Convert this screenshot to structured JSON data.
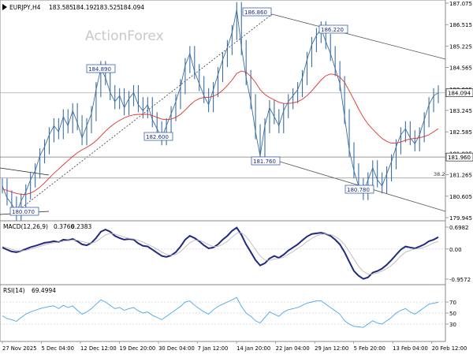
{
  "chart_data": [
    {
      "panel": "price",
      "type": "candlestick-line",
      "header": {
        "symbol": "EURJPY,H4",
        "open": "183.585",
        "high": "184.192",
        "low": "183.525",
        "close": "184.094"
      },
      "watermark": "ActionForex",
      "ylim": [
        179.945,
        187.075
      ],
      "y_tick_labels": [
        "187.075",
        "186.515",
        "185.225",
        "184.565",
        "183.905",
        "183.245",
        "182.585",
        "181.925",
        "181.265",
        "180.605",
        "179.945"
      ],
      "current_price_label": "184.094",
      "horizontal_levels": [
        {
          "value": 184.094,
          "label": "184.094"
        },
        {
          "value": 181.96,
          "label": "181.960"
        },
        {
          "value": 181.26,
          "label": "38.2"
        }
      ],
      "annotations": [
        "186.860",
        "186.220",
        "184.890",
        "182.600",
        "181.760",
        "180.780",
        "180.070"
      ],
      "x_tick_labels": [
        "27 Nov 2025",
        "5 Dec 04:00",
        "12 Dec 12:00",
        "19 Dec 20:00",
        "30 Dec 04:00",
        "7 Jan 12:00",
        "14 Jan 20:00",
        "22 Jan 04:00",
        "29 Jan 12:00",
        "5 Feb 20:00",
        "13 Feb 04:00",
        "20 Feb 12:00"
      ],
      "series": [
        {
          "kind": "price",
          "color": "#3b6ea5",
          "values": [
            181.0,
            180.6,
            180.4,
            180.1,
            180.5,
            180.8,
            181.2,
            181.5,
            182.0,
            182.3,
            182.7,
            183.0,
            182.8,
            183.3,
            183.0,
            183.5,
            183.1,
            182.6,
            183.0,
            183.4,
            184.2,
            184.9,
            184.6,
            184.1,
            183.8,
            184.0,
            183.6,
            183.9,
            184.1,
            183.7,
            183.5,
            183.7,
            183.2,
            182.9,
            182.6,
            183.0,
            183.4,
            183.8,
            184.3,
            185.0,
            185.4,
            184.8,
            184.4,
            184.0,
            183.7,
            184.2,
            184.7,
            185.2,
            185.6,
            186.1,
            186.86,
            185.6,
            184.6,
            183.8,
            182.8,
            182.0,
            183.0,
            183.6,
            183.3,
            183.0,
            183.5,
            183.8,
            184.0,
            184.2,
            184.6,
            185.2,
            185.7,
            186.0,
            186.22,
            185.8,
            185.4,
            184.9,
            184.4,
            183.3,
            182.2,
            181.5,
            181.0,
            180.78,
            181.2,
            181.6,
            181.2,
            181.0,
            181.4,
            181.8,
            182.3,
            182.7,
            182.9,
            182.6,
            182.4,
            182.7,
            183.2,
            183.7,
            184.0,
            184.094
          ]
        },
        {
          "kind": "moving-average",
          "color": "#e03030",
          "values": [
            180.9,
            180.85,
            180.8,
            180.75,
            180.72,
            180.72,
            180.76,
            180.84,
            180.96,
            181.1,
            181.26,
            181.42,
            181.56,
            181.7,
            181.84,
            181.98,
            182.1,
            182.2,
            182.28,
            182.38,
            182.5,
            182.66,
            182.82,
            182.96,
            183.08,
            183.18,
            183.26,
            183.32,
            183.36,
            183.38,
            183.38,
            183.38,
            183.34,
            183.28,
            183.22,
            183.2,
            183.22,
            183.28,
            183.38,
            183.52,
            183.68,
            183.82,
            183.9,
            183.94,
            183.94,
            183.98,
            184.06,
            184.18,
            184.34,
            184.52,
            184.74,
            184.82,
            184.78,
            184.64,
            184.44,
            184.2,
            184.04,
            183.94,
            183.86,
            183.78,
            183.74,
            183.74,
            183.76,
            183.8,
            183.88,
            184.0,
            184.16,
            184.34,
            184.52,
            184.66,
            184.72,
            184.7,
            184.62,
            184.44,
            184.16,
            183.86,
            183.56,
            183.28,
            183.06,
            182.88,
            182.72,
            182.58,
            182.48,
            182.42,
            182.42,
            182.46,
            182.52,
            182.56,
            182.58,
            182.6,
            182.64,
            182.7,
            182.8,
            182.9
          ]
        }
      ]
    },
    {
      "panel": "macd",
      "type": "line",
      "header": {
        "name": "MACD(12,26,9)",
        "value1": "0.3766",
        "value2": "0.2383"
      },
      "ylim": [
        -0.9572,
        0.6982
      ],
      "y_tick_labels": [
        "0.6982",
        "0.00",
        "-0.9572"
      ],
      "series": [
        {
          "kind": "macd",
          "color": "#1f2a80",
          "values": [
            0.05,
            -0.02,
            -0.08,
            -0.1,
            -0.06,
            0.0,
            0.06,
            0.1,
            0.15,
            0.2,
            0.22,
            0.25,
            0.22,
            0.3,
            0.28,
            0.32,
            0.25,
            0.15,
            0.12,
            0.2,
            0.35,
            0.55,
            0.62,
            0.55,
            0.42,
            0.35,
            0.3,
            0.32,
            0.3,
            0.18,
            0.1,
            0.08,
            -0.02,
            -0.12,
            -0.22,
            -0.25,
            -0.2,
            -0.1,
            0.08,
            0.3,
            0.42,
            0.35,
            0.25,
            0.12,
            0.02,
            0.05,
            0.15,
            0.3,
            0.42,
            0.58,
            0.68,
            0.45,
            0.15,
            -0.1,
            -0.35,
            -0.52,
            -0.45,
            -0.3,
            -0.22,
            -0.28,
            -0.18,
            -0.05,
            0.05,
            0.15,
            0.28,
            0.4,
            0.48,
            0.5,
            0.52,
            0.48,
            0.42,
            0.3,
            0.15,
            -0.1,
            -0.4,
            -0.7,
            -0.85,
            -0.95,
            -0.9,
            -0.75,
            -0.7,
            -0.62,
            -0.5,
            -0.35,
            -0.18,
            -0.02,
            0.08,
            0.05,
            0.02,
            0.08,
            0.15,
            0.25,
            0.3,
            0.3766
          ]
        },
        {
          "kind": "signal",
          "color": "#bbbbbb",
          "values": [
            0.08,
            0.04,
            -0.01,
            -0.05,
            -0.06,
            -0.04,
            0.0,
            0.04,
            0.08,
            0.13,
            0.17,
            0.2,
            0.22,
            0.25,
            0.27,
            0.29,
            0.28,
            0.24,
            0.2,
            0.19,
            0.24,
            0.34,
            0.45,
            0.5,
            0.48,
            0.43,
            0.38,
            0.34,
            0.32,
            0.28,
            0.22,
            0.15,
            0.08,
            0.0,
            -0.1,
            -0.17,
            -0.2,
            -0.17,
            -0.08,
            0.06,
            0.2,
            0.28,
            0.28,
            0.22,
            0.14,
            0.08,
            0.08,
            0.15,
            0.25,
            0.38,
            0.5,
            0.52,
            0.4,
            0.2,
            -0.02,
            -0.22,
            -0.35,
            -0.36,
            -0.32,
            -0.3,
            -0.26,
            -0.17,
            -0.08,
            0.02,
            0.12,
            0.24,
            0.34,
            0.42,
            0.47,
            0.48,
            0.46,
            0.4,
            0.3,
            0.14,
            -0.08,
            -0.32,
            -0.55,
            -0.72,
            -0.8,
            -0.8,
            -0.76,
            -0.7,
            -0.62,
            -0.52,
            -0.38,
            -0.22,
            -0.1,
            -0.04,
            0.0,
            0.02,
            0.06,
            0.12,
            0.2,
            0.2383
          ]
        }
      ]
    },
    {
      "panel": "rsi",
      "type": "line",
      "header": {
        "name": "RSI(14)",
        "value": "69.4994"
      },
      "ylim": [
        0,
        100
      ],
      "y_tick_labels": [
        "70",
        "50",
        "30"
      ],
      "levels": [
        70,
        50,
        30
      ],
      "series": [
        {
          "kind": "rsi",
          "color": "#4aa8e8",
          "values": [
            45,
            40,
            38,
            35,
            42,
            48,
            52,
            55,
            58,
            60,
            62,
            63,
            58,
            64,
            60,
            63,
            55,
            48,
            52,
            58,
            66,
            74,
            70,
            64,
            58,
            60,
            55,
            58,
            60,
            54,
            50,
            52,
            46,
            42,
            38,
            44,
            50,
            56,
            62,
            70,
            72,
            64,
            58,
            52,
            48,
            56,
            62,
            66,
            70,
            74,
            78,
            62,
            50,
            44,
            36,
            32,
            42,
            52,
            48,
            44,
            52,
            56,
            58,
            60,
            64,
            68,
            70,
            72,
            72,
            66,
            60,
            54,
            48,
            36,
            30,
            26,
            25,
            24,
            30,
            36,
            32,
            30,
            36,
            42,
            50,
            55,
            58,
            52,
            48,
            54,
            60,
            66,
            68,
            69.4994
          ]
        }
      ]
    }
  ]
}
